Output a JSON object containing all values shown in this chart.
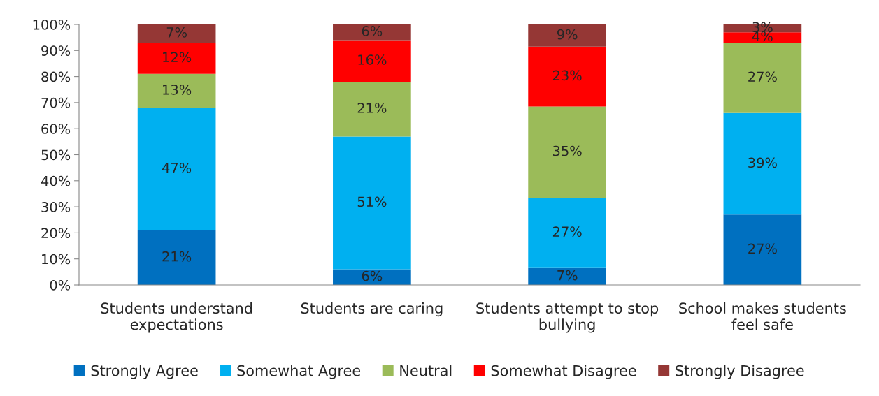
{
  "chart_data": {
    "type": "bar",
    "stacked": true,
    "categories": [
      "Students understand expectations",
      "Students are caring",
      "Students attempt to stop bullying",
      "School makes students feel safe"
    ],
    "series": [
      {
        "name": "Strongly Agree",
        "color": "#0070c0",
        "values": [
          21,
          6,
          6.5,
          27
        ],
        "value_labels": [
          "21%",
          "6%",
          "7%",
          "27%"
        ]
      },
      {
        "name": "Somewhat Agree",
        "color": "#00b0f0",
        "values": [
          47,
          51,
          27,
          39
        ],
        "value_labels": [
          "47%",
          "51%",
          "27%",
          "39%"
        ]
      },
      {
        "name": "Neutral",
        "color": "#9bbb59",
        "values": [
          13,
          21,
          35,
          27
        ],
        "value_labels": [
          "13%",
          "21%",
          "35%",
          "27%"
        ]
      },
      {
        "name": "Somewhat Disagree",
        "color": "#ff0000",
        "values": [
          12,
          16,
          23,
          4
        ],
        "value_labels": [
          "12%",
          "16%",
          "23%",
          "4%"
        ]
      },
      {
        "name": "Strongly Disagree",
        "color": "#953735",
        "values": [
          7,
          6,
          8.5,
          3
        ],
        "value_labels": [
          "7%",
          "6%",
          "9%",
          "3%"
        ]
      }
    ],
    "ylim": [
      0,
      100
    ],
    "yticks": [
      {
        "value": 0,
        "label": "0%"
      },
      {
        "value": 10,
        "label": "10%"
      },
      {
        "value": 20,
        "label": "20%"
      },
      {
        "value": 30,
        "label": "30%"
      },
      {
        "value": 40,
        "label": "40%"
      },
      {
        "value": 50,
        "label": "50%"
      },
      {
        "value": 60,
        "label": "60%"
      },
      {
        "value": 70,
        "label": "70%"
      },
      {
        "value": 80,
        "label": "80%"
      },
      {
        "value": 90,
        "label": "90%"
      },
      {
        "value": 100,
        "label": "100%"
      }
    ],
    "grid": false,
    "legend": "bottom"
  }
}
